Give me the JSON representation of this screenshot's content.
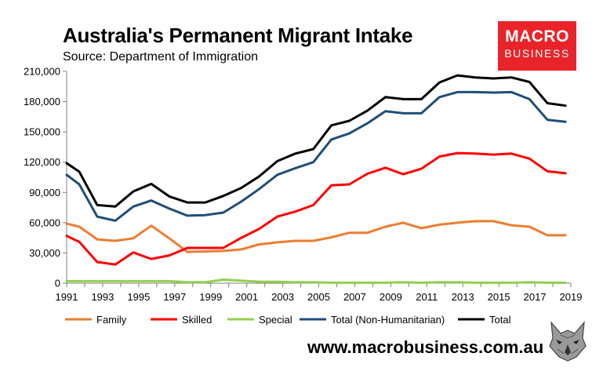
{
  "header": {
    "title": "Australia's Permanent Migrant Intake",
    "source": "Source: Department of Immigration"
  },
  "logo": {
    "line1": "MACRO",
    "line2": "BUSINESS",
    "color": "#e8242a"
  },
  "footer": {
    "website": "www.macrobusiness.com.au"
  },
  "wolf_icon": "wolf-head-icon",
  "chart_data": {
    "type": "line",
    "title": "Australia's Permanent Migrant Intake",
    "xlabel": "",
    "ylabel": "",
    "xlim": [
      1991,
      2019
    ],
    "ylim": [
      0,
      210000
    ],
    "yticks": [
      0,
      30000,
      60000,
      90000,
      120000,
      150000,
      180000,
      210000
    ],
    "ytick_labels": [
      "0",
      "30,000",
      "60,000",
      "90,000",
      "120,000",
      "150,000",
      "180,000",
      "210,000"
    ],
    "xticks": [
      1991,
      1993,
      1995,
      1997,
      1999,
      2001,
      2003,
      2005,
      2007,
      2009,
      2011,
      2013,
      2015,
      2017,
      2019
    ],
    "xtick_labels": [
      "1991",
      "1993",
      "1995",
      "1997",
      "1999",
      "2001",
      "2003",
      "2005",
      "2007",
      "2009",
      "2011",
      "2013",
      "2015",
      "2017",
      "2019"
    ],
    "grid": false,
    "legend_position": "bottom",
    "x": [
      1991,
      1991.7,
      1992.7,
      1993.7,
      1994.7,
      1995.7,
      1996.7,
      1997.7,
      1998.7,
      1999.7,
      2000.7,
      2001.7,
      2002.7,
      2003.7,
      2004.7,
      2005.7,
      2006.7,
      2007.7,
      2008.7,
      2009.7,
      2010.7,
      2011.7,
      2012.7,
      2013.7,
      2014.7,
      2015.7,
      2016.7,
      2017.7,
      2018.7
    ],
    "series": [
      {
        "name": "Family",
        "color": "#ed7d31",
        "values": [
          59000,
          56000,
          43500,
          42000,
          44500,
          57000,
          44500,
          31000,
          31500,
          32000,
          33500,
          38500,
          40500,
          42000,
          42000,
          45500,
          50000,
          50000,
          56000,
          60000,
          54500,
          58000,
          60000,
          61500,
          61500,
          57500,
          56000,
          47500,
          47500
        ]
      },
      {
        "name": "Skilled",
        "color": "#ff0000",
        "values": [
          47000,
          41000,
          21000,
          18500,
          30500,
          24000,
          27500,
          35000,
          35000,
          35000,
          45000,
          54000,
          66000,
          71000,
          77500,
          97000,
          98000,
          108500,
          114500,
          108000,
          113500,
          125500,
          129000,
          128500,
          127500,
          128500,
          123500,
          111000,
          109000
        ]
      },
      {
        "name": "Special",
        "color": "#92d050",
        "values": [
          2000,
          2000,
          2000,
          2000,
          2000,
          2000,
          2000,
          1000,
          1000,
          3500,
          2500,
          1500,
          1500,
          1000,
          1000,
          500,
          500,
          500,
          500,
          1000,
          500,
          1000,
          1000,
          500,
          500,
          500,
          1000,
          500,
          500
        ]
      },
      {
        "name": "Total (Non-Humanitarian)",
        "color": "#1f4e79",
        "values": [
          107500,
          98000,
          66000,
          62000,
          76000,
          82000,
          74000,
          67000,
          67500,
          70000,
          81000,
          93500,
          107500,
          114000,
          120000,
          142500,
          148500,
          158500,
          170500,
          168500,
          168500,
          184500,
          189500,
          189500,
          189000,
          189500,
          182500,
          162000,
          160000
        ]
      },
      {
        "name": "Total",
        "color": "#000000",
        "values": [
          119000,
          110500,
          77500,
          76000,
          91000,
          98500,
          86000,
          80000,
          80000,
          86500,
          94500,
          106000,
          121000,
          128500,
          133000,
          156500,
          161000,
          171000,
          184500,
          182500,
          182500,
          199000,
          206000,
          204000,
          203000,
          204000,
          199500,
          178500,
          176000
        ]
      }
    ]
  }
}
